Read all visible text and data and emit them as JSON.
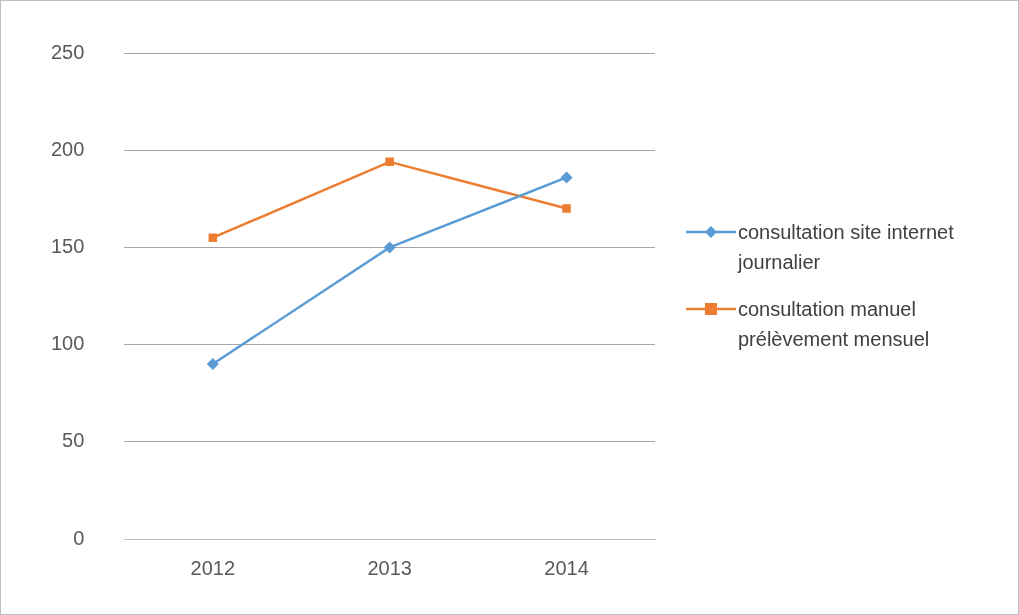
{
  "chart_data": {
    "type": "line",
    "categories": [
      "2012",
      "2013",
      "2014"
    ],
    "series": [
      {
        "name": "consultation site internet journalier",
        "color": "#5b9bd5",
        "values": [
          90,
          150,
          186
        ],
        "marker": "diamond"
      },
      {
        "name": "consultation manuel prélèvement mensuel",
        "color": "#ed7d31",
        "values": [
          155,
          194,
          170
        ],
        "marker": "square"
      }
    ],
    "ylim": [
      0,
      250
    ],
    "yticks": [
      0,
      50,
      100,
      150,
      200,
      250
    ],
    "grid": "y",
    "legend": "right",
    "line_style": "solid"
  }
}
